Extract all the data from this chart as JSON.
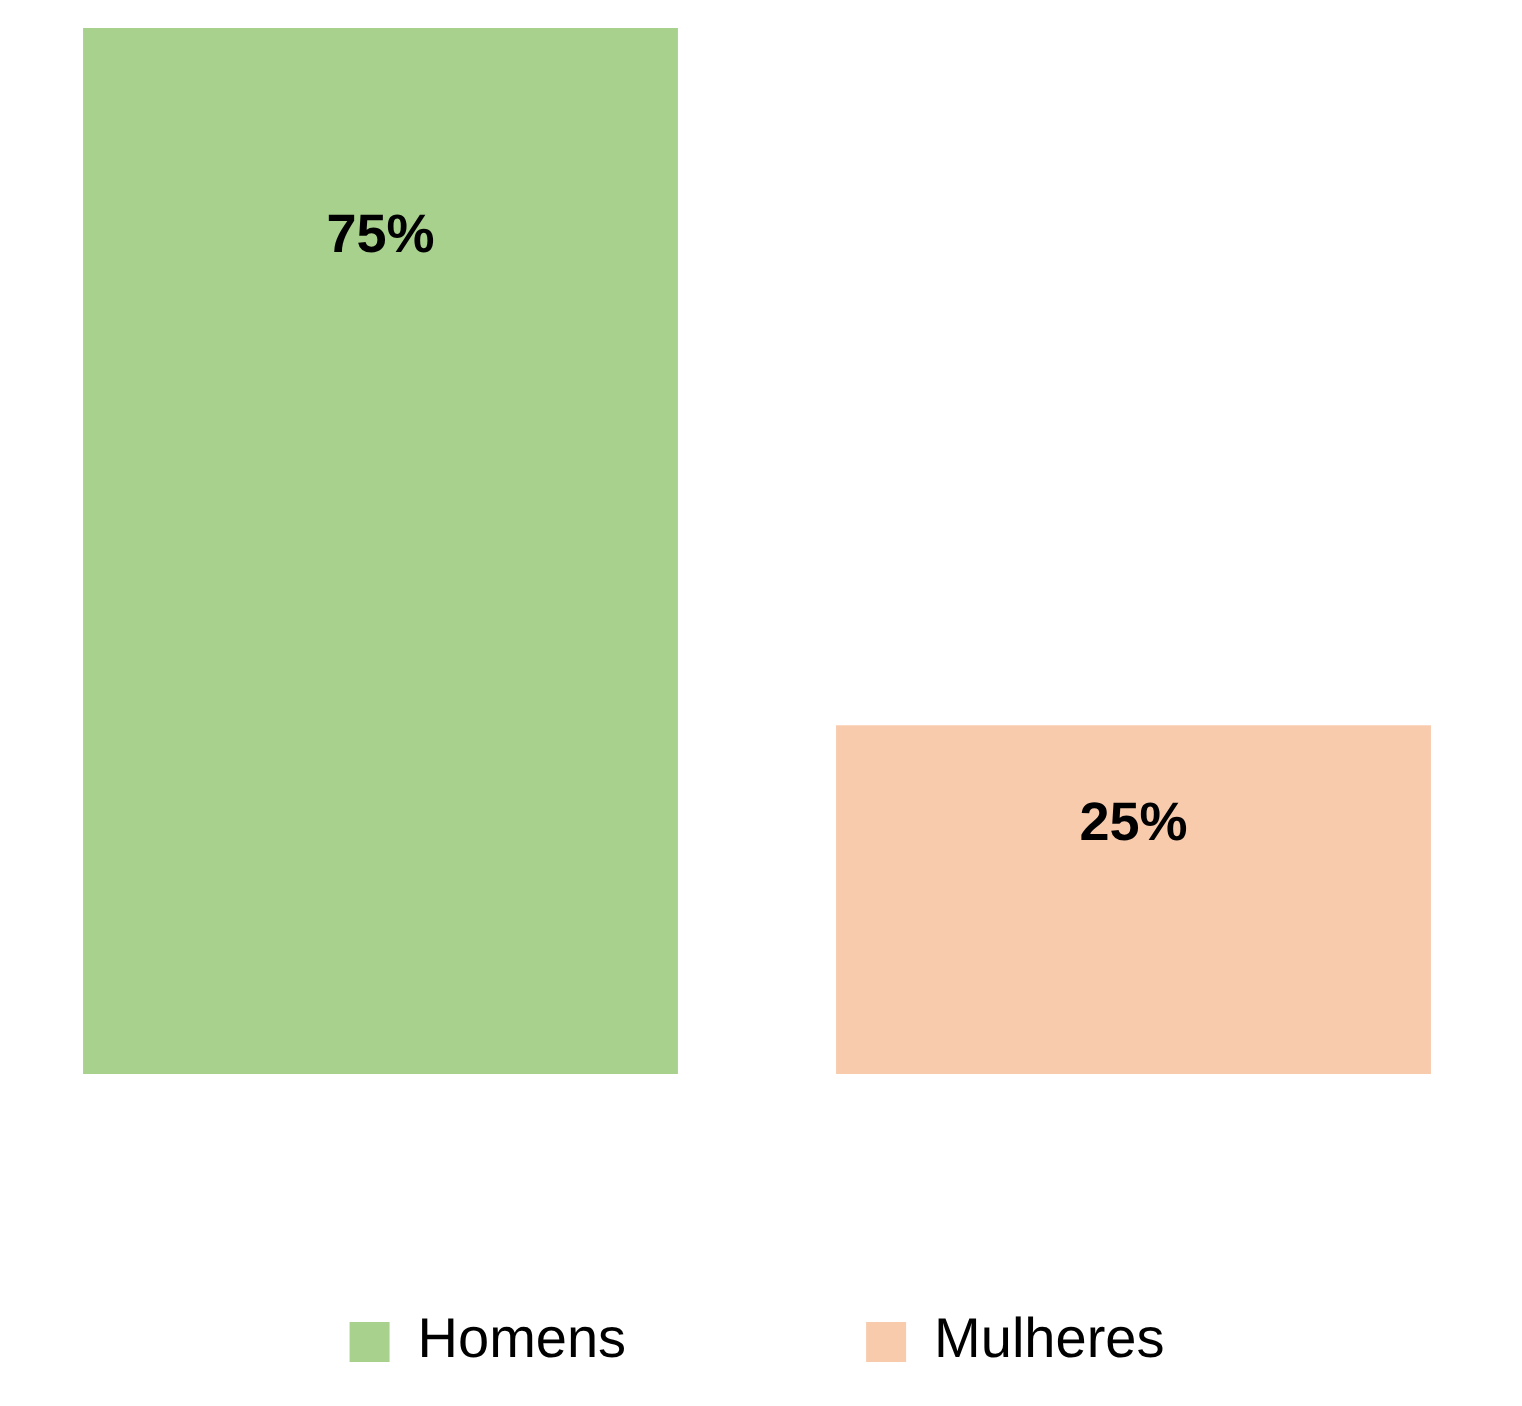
{
  "chart_data": {
    "type": "bar",
    "categories": [
      null
    ],
    "series": [
      {
        "name": "Homens",
        "color": "#a9d18e",
        "values": [
          75
        ],
        "value_labels": [
          "75%"
        ]
      },
      {
        "name": "Mulheres",
        "color": "#f8cbad",
        "values": [
          25
        ],
        "value_labels": [
          "25%"
        ]
      }
    ],
    "legend": "bottom"
  }
}
